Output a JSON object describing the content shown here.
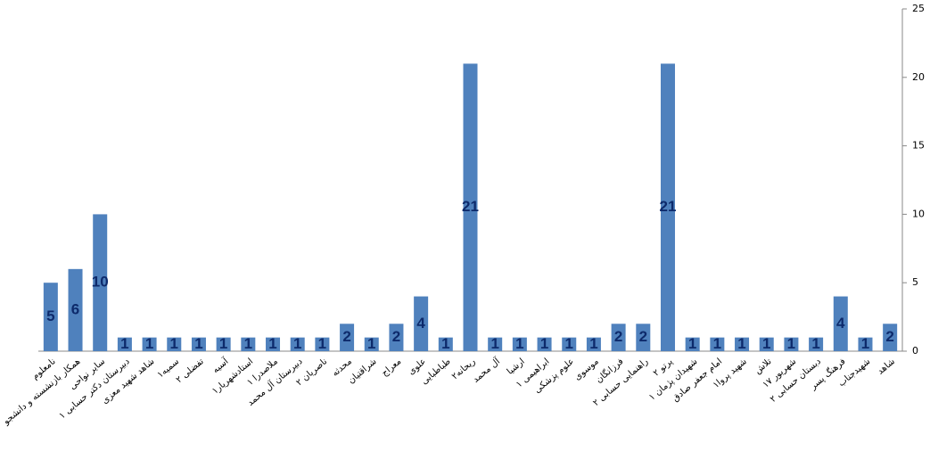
{
  "chart_data": {
    "type": "bar",
    "categories": [
      "نامعلوم",
      "همکار بازنشسته و دانشجو",
      "سایر نواحی",
      "دبیرستان دکتر حسابی ۱",
      "شاهد شهید معزی",
      "سمیه۱",
      "تفضلی ۲",
      "آسیه",
      "استادشهریار۱",
      "ملاصدرا ۱",
      "دبیرستان آل محمد",
      "ناصریان ۲",
      "محدثه",
      "شراقتیان",
      "معراج",
      "علوی",
      "طباطبایی",
      "ریحانه۲",
      "آل محمد",
      "ارشیا",
      "ابراهیمی ۱",
      "علوم پزشکی",
      "موسوی",
      "فرزانگان",
      "راهنمایی حسابی ۲",
      "پرتو ۲",
      "شهیدان پژمان ۱",
      "امام جعفر صادق",
      "شهید پروا۱",
      "تلاش",
      "۱۷ شهریور",
      "دبستان حسابی ۲",
      "فرهنگ پسر",
      "شهیدجناب",
      "شاهد"
    ],
    "values": [
      5,
      6,
      10,
      1,
      1,
      1,
      1,
      1,
      1,
      1,
      1,
      1,
      2,
      1,
      2,
      4,
      1,
      21,
      1,
      1,
      1,
      1,
      1,
      2,
      2,
      21,
      1,
      1,
      1,
      1,
      1,
      1,
      4,
      1,
      2
    ],
    "color": "#4f81bd",
    "ylim": [
      0,
      25
    ],
    "yticks": [
      0,
      5,
      10,
      15,
      20,
      25
    ],
    "grid": false
  }
}
